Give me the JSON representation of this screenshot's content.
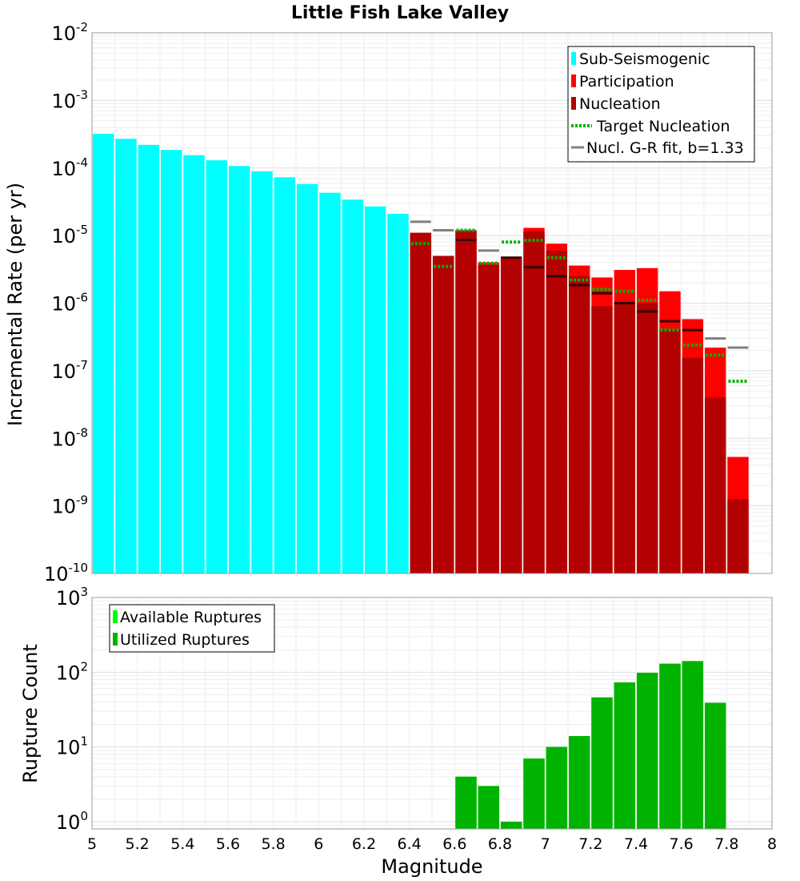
{
  "chart_data": [
    {
      "type": "bar",
      "title": "Little Fish Lake Valley",
      "xlabel": "",
      "ylabel": "Incremental Rate (per yr)",
      "yscale": "log",
      "ylim": [
        1e-10,
        0.01
      ],
      "xlim": [
        5,
        8
      ],
      "y_tick_labels": [
        {
          "base": "10",
          "exp": "-2"
        },
        {
          "base": "10",
          "exp": "-3"
        },
        {
          "base": "10",
          "exp": "-4"
        },
        {
          "base": "10",
          "exp": "-5"
        },
        {
          "base": "10",
          "exp": "-6"
        },
        {
          "base": "10",
          "exp": "-7"
        },
        {
          "base": "10",
          "exp": "-8"
        },
        {
          "base": "10",
          "exp": "-9"
        },
        {
          "base": "10",
          "exp": "-10"
        }
      ],
      "legend": [
        {
          "label": "Sub-Seismogenic",
          "color": "#00ffff",
          "style": "bar"
        },
        {
          "label": "Participation",
          "color": "#ff0000",
          "style": "bar"
        },
        {
          "label": "Nucleation",
          "color": "#b30000",
          "style": "bar"
        },
        {
          "label": "Target Nucleation",
          "color": "#00b300",
          "style": "dotted"
        },
        {
          "label": "Nucl. G-R fit, b=1.33",
          "color": "#808080",
          "style": "solid"
        }
      ],
      "legend_position": "top-right",
      "sub_seismogenic": {
        "x": [
          5.05,
          5.15,
          5.25,
          5.35,
          5.45,
          5.55,
          5.65,
          5.75,
          5.85,
          5.95,
          6.05,
          6.15,
          6.25,
          6.35
        ],
        "values": [
          0.00032,
          0.00027,
          0.00022,
          0.000185,
          0.000155,
          0.00013,
          0.000107,
          8.9e-05,
          7.3e-05,
          5.8e-05,
          4.3e-05,
          3.4e-05,
          2.7e-05,
          2.1e-05
        ]
      },
      "x": [
        6.45,
        6.55,
        6.65,
        6.75,
        6.85,
        6.95,
        7.05,
        7.15,
        7.25,
        7.35,
        7.45,
        7.55,
        7.65,
        7.75,
        7.85
      ],
      "participation": [
        1.1e-05,
        5e-06,
        1.2e-05,
        4e-06,
        4.7e-06,
        1.3e-05,
        7.6e-06,
        3.6e-06,
        2.4e-06,
        3.1e-06,
        3.3e-06,
        1.5e-06,
        5.8e-07,
        2.2e-07,
        5.3e-09
      ],
      "nucleation": [
        1.1e-05,
        5e-06,
        1.2e-05,
        3.7e-06,
        4.6e-06,
        1.15e-05,
        6e-06,
        2.5e-06,
        9e-07,
        1.05e-06,
        1e-06,
        4.1e-07,
        1.55e-07,
        4e-08,
        1.25e-09
      ],
      "target_nucleation": [
        7.6e-06,
        3.5e-06,
        1.2e-05,
        3.9e-06,
        8e-06,
        8.5e-06,
        4.7e-06,
        2.2e-06,
        1.6e-06,
        1.5e-06,
        1.1e-06,
        4e-07,
        2.4e-07,
        1.7e-07,
        7e-08
      ],
      "gr_fit": [
        1.6e-05,
        1.2e-05,
        8.6e-06,
        6e-06,
        4.7e-06,
        3.4e-06,
        2.5e-06,
        1.85e-06,
        1.4e-06,
        1e-06,
        7.5e-07,
        5.4e-07,
        4e-07,
        3e-07,
        2.2e-07
      ]
    },
    {
      "type": "bar",
      "title": "",
      "xlabel": "Magnitude",
      "ylabel": "Rupture Count",
      "yscale": "log",
      "ylim": [
        0.8,
        1000
      ],
      "xlim": [
        5,
        8
      ],
      "x_tick_labels": [
        "5",
        "5.2",
        "5.4",
        "5.6",
        "5.8",
        "6",
        "6.2",
        "6.4",
        "6.6",
        "6.8",
        "7",
        "7.2",
        "7.4",
        "7.6",
        "7.8",
        "8"
      ],
      "y_tick_labels": [
        {
          "base": "10",
          "exp": "3"
        },
        {
          "base": "10",
          "exp": "2"
        },
        {
          "base": "10",
          "exp": "1"
        },
        {
          "base": "10",
          "exp": "0"
        }
      ],
      "legend": [
        {
          "label": "Available Ruptures",
          "color": "#00ff00",
          "style": "bar"
        },
        {
          "label": "Utilized Ruptures",
          "color": "#00b300",
          "style": "bar"
        }
      ],
      "legend_position": "top-left",
      "x": [
        6.65,
        6.75,
        6.85,
        6.95,
        7.05,
        7.15,
        7.25,
        7.35,
        7.45,
        7.55,
        7.65,
        7.75
      ],
      "available": [
        4,
        3,
        1,
        7,
        10,
        14,
        46,
        73,
        98,
        130,
        141,
        39
      ],
      "utilized": [
        4,
        3,
        1,
        7,
        10,
        14,
        46,
        73,
        98,
        130,
        141,
        39
      ]
    }
  ]
}
